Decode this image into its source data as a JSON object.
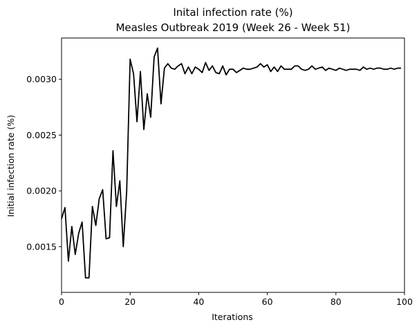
{
  "chart_data": {
    "type": "line",
    "title_line1": "Inital infection rate (%)",
    "title_line2": "Measles Outbreak 2019 (Week 26 - Week 51)",
    "xlabel": "Iterations",
    "ylabel": "Initial infection rate (%)",
    "xlim": [
      0,
      100
    ],
    "ylim": [
      0.00109,
      0.00337
    ],
    "xticks": [
      0,
      20,
      40,
      60,
      80,
      100
    ],
    "xtick_labels": [
      "0",
      "20",
      "40",
      "60",
      "80",
      "100"
    ],
    "yticks": [
      0.0015,
      0.002,
      0.0025,
      0.003
    ],
    "ytick_labels": [
      "0.0015",
      "0.0020",
      "0.0025",
      "0.0030"
    ],
    "grid": false,
    "line_color": "#000000",
    "series": [
      {
        "name": "Initial infection rate",
        "x": [
          0,
          1,
          2,
          3,
          4,
          5,
          6,
          7,
          8,
          9,
          10,
          11,
          12,
          13,
          14,
          15,
          16,
          17,
          18,
          19,
          20,
          21,
          22,
          23,
          24,
          25,
          26,
          27,
          28,
          29,
          30,
          31,
          32,
          33,
          34,
          35,
          36,
          37,
          38,
          39,
          40,
          41,
          42,
          43,
          44,
          45,
          46,
          47,
          48,
          49,
          50,
          51,
          52,
          53,
          54,
          55,
          56,
          57,
          58,
          59,
          60,
          61,
          62,
          63,
          64,
          65,
          66,
          67,
          68,
          69,
          70,
          71,
          72,
          73,
          74,
          75,
          76,
          77,
          78,
          79,
          80,
          81,
          82,
          83,
          84,
          85,
          86,
          87,
          88,
          89,
          90,
          91,
          92,
          93,
          94,
          95,
          96,
          97,
          98,
          99
        ],
        "values": [
          0.00175,
          0.00185,
          0.00137,
          0.00168,
          0.00143,
          0.00162,
          0.00172,
          0.00122,
          0.00122,
          0.00186,
          0.00169,
          0.00193,
          0.00201,
          0.00157,
          0.00158,
          0.00236,
          0.00186,
          0.00209,
          0.0015,
          0.002,
          0.00318,
          0.00305,
          0.00262,
          0.00307,
          0.00255,
          0.00287,
          0.00266,
          0.0032,
          0.00328,
          0.00278,
          0.0031,
          0.00314,
          0.0031,
          0.00309,
          0.00312,
          0.00314,
          0.00305,
          0.00311,
          0.00305,
          0.00311,
          0.00309,
          0.00306,
          0.00315,
          0.00308,
          0.00312,
          0.00306,
          0.00305,
          0.00312,
          0.00304,
          0.00309,
          0.00309,
          0.00306,
          0.00308,
          0.0031,
          0.00309,
          0.00309,
          0.0031,
          0.00311,
          0.00314,
          0.00311,
          0.00313,
          0.00307,
          0.00311,
          0.00307,
          0.00312,
          0.00309,
          0.00309,
          0.00309,
          0.00312,
          0.00312,
          0.00309,
          0.00308,
          0.00309,
          0.00312,
          0.00309,
          0.0031,
          0.00311,
          0.00308,
          0.0031,
          0.00309,
          0.00308,
          0.0031,
          0.00309,
          0.00308,
          0.00309,
          0.00309,
          0.00309,
          0.00308,
          0.00311,
          0.00309,
          0.0031,
          0.00309,
          0.0031,
          0.0031,
          0.00309,
          0.00309,
          0.0031,
          0.00309,
          0.0031,
          0.0031
        ]
      }
    ]
  }
}
